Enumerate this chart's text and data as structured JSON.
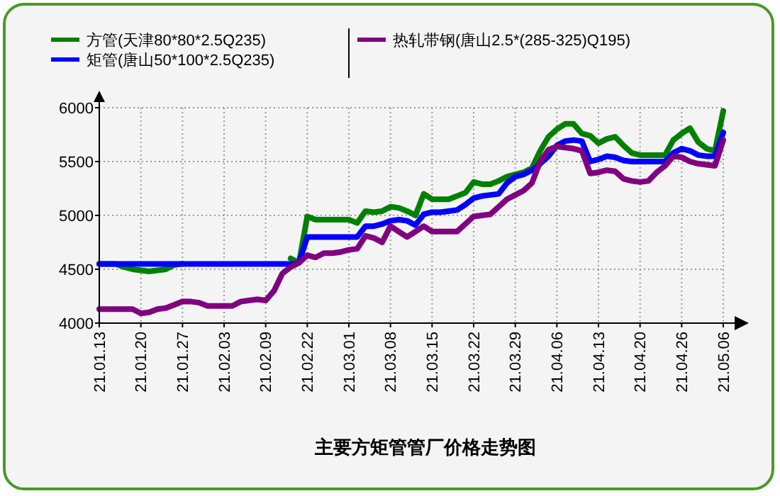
{
  "chart_data": {
    "type": "line",
    "title": "主要方矩管管厂价格走势图",
    "categories": [
      "21.01.13",
      null,
      null,
      null,
      null,
      "21.01.20",
      null,
      null,
      null,
      null,
      "21.01.27",
      null,
      null,
      null,
      null,
      "21.02.03",
      null,
      null,
      null,
      null,
      "21.02.09",
      null,
      null,
      null,
      null,
      "21.02.22",
      null,
      null,
      null,
      null,
      "21.03.01",
      null,
      null,
      null,
      null,
      "21.03.08",
      null,
      null,
      null,
      null,
      "21.03.15",
      null,
      null,
      null,
      null,
      "21.03.22",
      null,
      null,
      null,
      null,
      "21.03.29",
      null,
      null,
      null,
      null,
      "21.04.06",
      null,
      null,
      null,
      null,
      "21.04.13",
      null,
      null,
      null,
      null,
      "21.04.20",
      null,
      null,
      null,
      null,
      "21.04.26",
      null,
      null,
      null,
      null,
      "21.05.06"
    ],
    "series": [
      {
        "name": "方管(天津80*80*2.5Q235)",
        "color": "#008000",
        "values": [
          4550,
          4550,
          4550,
          4520,
          4500,
          4490,
          4480,
          4490,
          4500,
          4540,
          4550,
          null,
          null,
          null,
          null,
          null,
          null,
          null,
          null,
          null,
          null,
          null,
          null,
          4600,
          4560,
          4990,
          4960,
          4960,
          4960,
          4960,
          4960,
          4930,
          5040,
          5030,
          5040,
          5080,
          5070,
          5040,
          5000,
          5200,
          5150,
          5150,
          5150,
          5180,
          5210,
          5310,
          5290,
          5290,
          5320,
          5360,
          5380,
          5400,
          5440,
          5600,
          5730,
          5800,
          5850,
          5850,
          5760,
          5740,
          5670,
          5710,
          5730,
          5650,
          5580,
          5560,
          5560,
          5560,
          5560,
          5700,
          5760,
          5810,
          5680,
          5620,
          5600,
          5970
        ]
      },
      {
        "name": "矩管(唐山50*100*2.5Q235)",
        "color": "#0000ff",
        "values": [
          4550,
          4550,
          4550,
          4550,
          4550,
          4550,
          4550,
          4550,
          4550,
          4550,
          4550,
          4550,
          4550,
          4550,
          4550,
          4550,
          4550,
          4550,
          4550,
          4550,
          4550,
          4550,
          4550,
          4550,
          4560,
          4800,
          4800,
          4800,
          4800,
          4800,
          4800,
          4800,
          4900,
          4900,
          4920,
          4950,
          4960,
          4950,
          4910,
          5010,
          5030,
          5030,
          5040,
          5050,
          5100,
          5160,
          5180,
          5190,
          5200,
          5300,
          5360,
          5380,
          5420,
          5480,
          5550,
          5650,
          5690,
          5700,
          5690,
          5500,
          5520,
          5550,
          5540,
          5510,
          5500,
          5500,
          5500,
          5500,
          5500,
          5580,
          5620,
          5600,
          5560,
          5550,
          5550,
          5770
        ]
      },
      {
        "name": "热轧带钢(唐山2.5*(285-325)Q195)",
        "color": "#800080",
        "values": [
          4130,
          4130,
          4130,
          4130,
          4130,
          4090,
          4100,
          4130,
          4140,
          4170,
          4200,
          4200,
          4190,
          4160,
          4160,
          4160,
          4160,
          4200,
          4210,
          4220,
          4210,
          4300,
          4460,
          4520,
          4560,
          4630,
          4610,
          4650,
          4650,
          4660,
          4680,
          4690,
          4810,
          4790,
          4750,
          4900,
          4850,
          4800,
          4850,
          4900,
          4850,
          4850,
          4850,
          4850,
          4920,
          4990,
          5000,
          5010,
          5080,
          5150,
          5190,
          5230,
          5300,
          5500,
          5610,
          5640,
          5630,
          5620,
          5600,
          5390,
          5400,
          5420,
          5410,
          5340,
          5320,
          5310,
          5320,
          5400,
          5460,
          5550,
          5540,
          5500,
          5480,
          5470,
          5460,
          5700
        ]
      }
    ],
    "ylim": [
      4000,
      6000
    ],
    "yticks": [
      4000,
      4500,
      5000,
      5500,
      6000
    ],
    "grid": true,
    "legend": "top",
    "marker": "none",
    "line_style": "solid"
  }
}
